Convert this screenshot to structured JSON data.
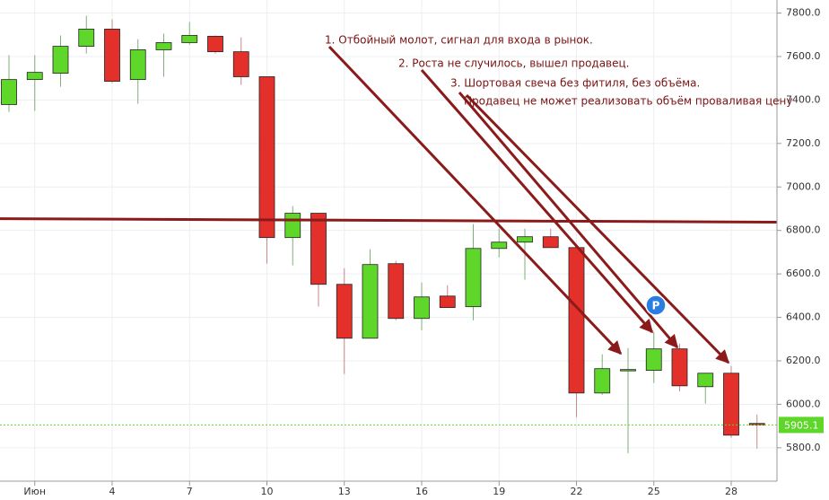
{
  "chart_data": {
    "type": "candlestick",
    "categories": [
      null,
      "Июн",
      null,
      null,
      "4",
      null,
      null,
      "7",
      null,
      null,
      "10",
      null,
      null,
      "13",
      null,
      null,
      "16",
      null,
      null,
      "19",
      null,
      null,
      "22",
      null,
      null,
      "25",
      null,
      null,
      "28",
      null
    ],
    "open": [
      7379,
      7494,
      7523,
      7647,
      7726,
      7494,
      7631,
      7664,
      7693,
      7622,
      7507,
      6767,
      6879,
      6552,
      6304,
      6647,
      6395,
      6498,
      6449,
      6717,
      6746,
      6771,
      6721,
      6052,
      6160,
      6156,
      6255,
      6081,
      6143,
      5912
    ],
    "high": [
      7606,
      7606,
      7697,
      7788,
      7771,
      7680,
      7705,
      7759,
      7697,
      7688,
      7507,
      6912,
      6879,
      6626,
      6713,
      6660,
      6560,
      6548,
      6829,
      6808,
      6808,
      6808,
      6721,
      6230,
      6259,
      6333,
      6279,
      6143,
      6176,
      5953
    ],
    "low": [
      7345,
      7350,
      7461,
      7614,
      7478,
      7383,
      7507,
      7655,
      7614,
      7469,
      6647,
      6639,
      6449,
      6139,
      6304,
      6387,
      6341,
      6445,
      6387,
      6676,
      6573,
      6721,
      5941,
      6044,
      5775,
      6098,
      6060,
      6003,
      5846,
      5796
    ],
    "close": [
      7494,
      7527,
      7647,
      7726,
      7486,
      7631,
      7664,
      7697,
      7622,
      7507,
      6767,
      6879,
      6552,
      6304,
      6643,
      6395,
      6494,
      6445,
      6717,
      6746,
      6771,
      6721,
      6052,
      6164,
      6160,
      6255,
      6085,
      6143,
      5858,
      5905.1
    ],
    "up_color": "#5ed62a",
    "down_color": "#e4302a",
    "level_line": [
      6854,
      6837
    ],
    "ylim": [
      5630,
      7860
    ],
    "yticks": [
      {
        "value": 5800,
        "label": "5800.0"
      },
      {
        "value": 6000,
        "label": "6000.0"
      },
      {
        "value": 6200,
        "label": "6200.0"
      },
      {
        "value": 6400,
        "label": "6400.0"
      },
      {
        "value": 6600,
        "label": "6600.0"
      },
      {
        "value": 6800,
        "label": "6800.0"
      },
      {
        "value": 7000,
        "label": "7000.0"
      },
      {
        "value": 7200,
        "label": "7200.0"
      },
      {
        "value": 7400,
        "label": "7400.0"
      },
      {
        "value": 7600,
        "label": "7600.0"
      },
      {
        "value": 7800,
        "label": "7800.0"
      }
    ],
    "grid": true,
    "annotations": [
      "1. Отбойный молот, сигнал для входа в рынок.",
      "2. Роста не случилось, вышел продавец.",
      "3. Шортовая свеча без фитиля, без объёма.",
      "Продавец не может реализовать объём проваливая цену"
    ]
  }
}
